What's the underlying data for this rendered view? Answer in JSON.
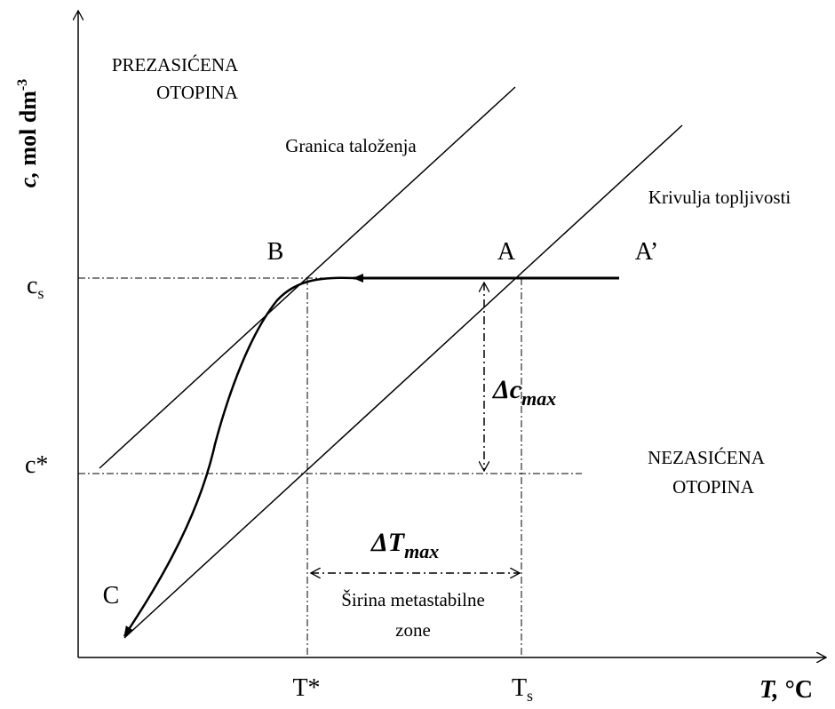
{
  "axis_labels": {
    "y": {
      "var": "c,",
      "unit": "mol dm",
      "sup": "-3"
    },
    "x": {
      "var": "T,",
      "unit": "°C"
    }
  },
  "regions": {
    "supersaturated": [
      "PREZASIĆENA",
      "OTOPINA"
    ],
    "unsaturated": [
      "NEZASIĆENA",
      "OTOPINA"
    ]
  },
  "curves": {
    "precipitation": "Granica taloženja",
    "solubility": "Krivulja topljivosti"
  },
  "points": {
    "B": "B",
    "A": "A",
    "A_prime": "A’",
    "C": "C"
  },
  "y_levels": {
    "cs": {
      "main": "c",
      "sub": "s"
    },
    "c_star": "c*"
  },
  "x_levels": {
    "t_star": "T*",
    "ts": {
      "main": "T",
      "sub": "s"
    }
  },
  "delta_c": {
    "main": "Δc",
    "sub": "max"
  },
  "delta_t": {
    "main": "ΔT",
    "sub": "max"
  },
  "zone_width": [
    "Širina metastabilne",
    "zone"
  ]
}
